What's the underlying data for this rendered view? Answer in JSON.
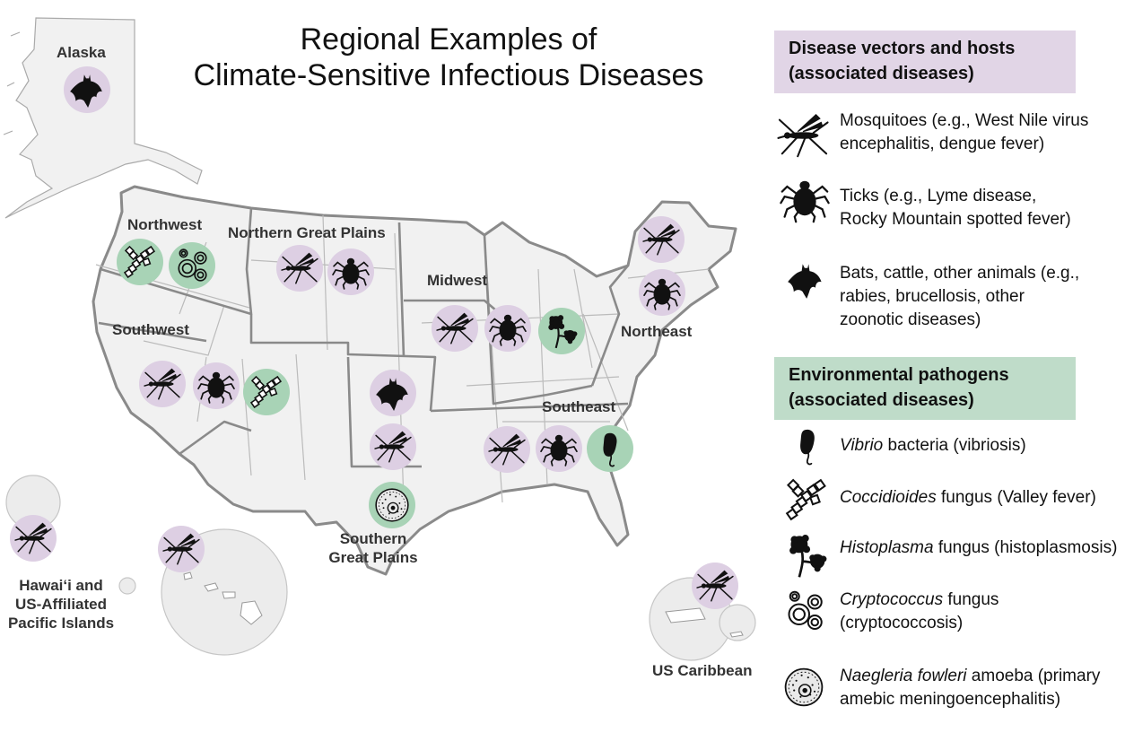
{
  "title": {
    "line1": "Regional Examples of",
    "line2": "Climate-Sensitive Infectious Diseases"
  },
  "regions": {
    "alaska": "Alaska",
    "northwest": "Northwest",
    "northern_great_plains": "Northern Great Plains",
    "midwest": "Midwest",
    "northeast": "Northeast",
    "southwest": "Southwest",
    "southeast": "Southeast",
    "southern_great_plains": [
      "Southern",
      "Great Plains"
    ],
    "hawaii": [
      "Hawai‘i and",
      "US-Affiliated",
      "Pacific Islands"
    ],
    "caribbean": "US Caribbean"
  },
  "legend": {
    "vectors_heading": [
      "Disease vectors and hosts",
      "(associated diseases)"
    ],
    "vectors": [
      {
        "icon": "mosquito-icon",
        "lines": [
          "Mosquitoes (e.g., West Nile virus",
          "encephalitis, dengue fever)"
        ]
      },
      {
        "icon": "tick-icon",
        "lines": [
          "Ticks (e.g., Lyme disease,",
          "Rocky Mountain spotted fever)"
        ]
      },
      {
        "icon": "bat-icon",
        "lines": [
          "Bats, cattle, other animals (e.g.,",
          "rabies, brucellosis, other",
          "zoonotic diseases)"
        ]
      }
    ],
    "pathogens_heading": [
      "Environmental pathogens",
      "(associated diseases)"
    ],
    "pathogens": [
      {
        "icon": "vibrio-icon",
        "italic": "Vibrio",
        "rest": " bacteria (vibriosis)"
      },
      {
        "icon": "coccidioides-icon",
        "italic": "Coccidioides",
        "rest": " fungus (Valley fever)"
      },
      {
        "icon": "histoplasma-icon",
        "italic": "Histoplasma",
        "rest": " fungus (histoplasmosis)"
      },
      {
        "icon": "cryptococcus-icon",
        "italic": "Cryptococcus",
        "rest": " fungus",
        "line2": "(cryptococcosis)"
      },
      {
        "icon": "naegleria-icon",
        "italic": "Naegleria fowleri",
        "rest": " amoeba  (primary",
        "line2": "amebic meningoencephalitis)"
      }
    ]
  },
  "region_markers": {
    "alaska": [
      "bat"
    ],
    "northwest": [
      "coccidioides",
      "cryptococcus"
    ],
    "northern_great_plains": [
      "mosquito",
      "tick"
    ],
    "midwest": [
      "mosquito",
      "tick",
      "histoplasma"
    ],
    "northeast": [
      "mosquito",
      "tick"
    ],
    "southwest": [
      "mosquito",
      "tick",
      "coccidioides"
    ],
    "southern_great_plains": [
      "bat",
      "mosquito",
      "naegleria"
    ],
    "southeast": [
      "mosquito",
      "tick",
      "vibrio"
    ],
    "hawaii": [
      "mosquito",
      "mosquito"
    ],
    "caribbean": [
      "mosquito"
    ]
  },
  "colors": {
    "vector_bubble": "#ddcfe3",
    "pathogen_bubble": "#a8d3b6",
    "land": "#f1f1f1",
    "border": "#8a8a8a",
    "vector_heading_bg": "#e1d5e6",
    "pathogen_heading_bg": "#bfdcc9"
  }
}
